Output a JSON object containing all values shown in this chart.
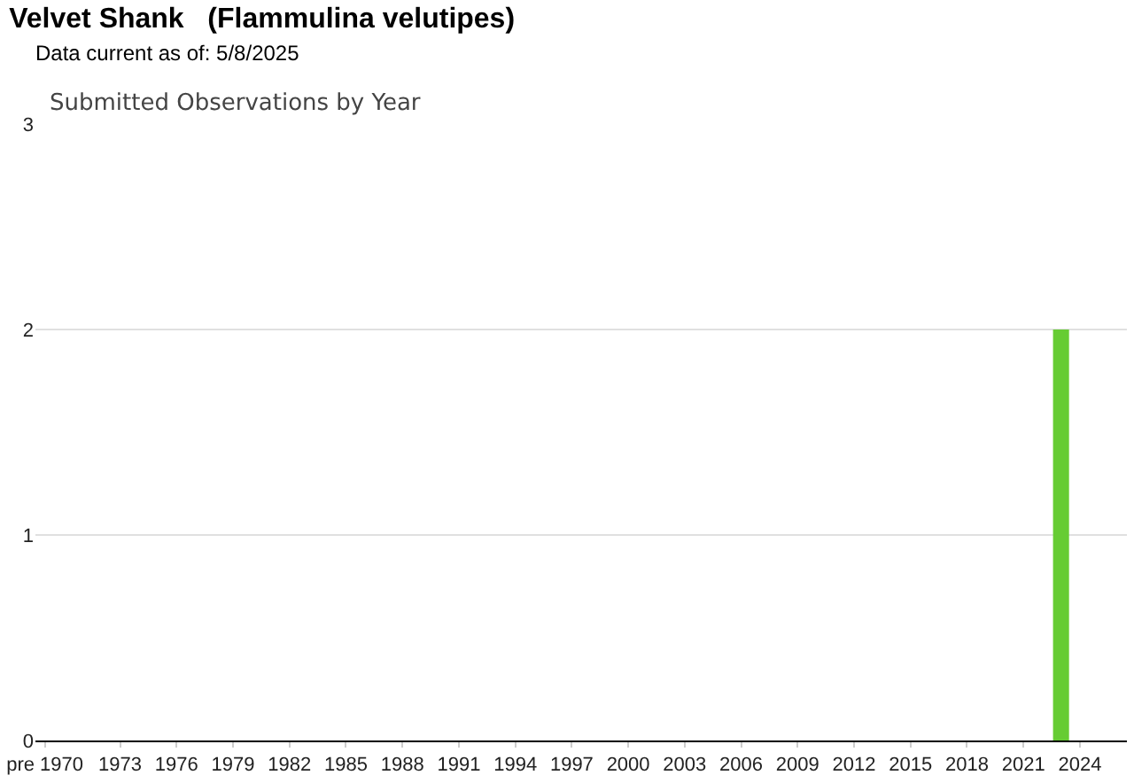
{
  "chart_data": {
    "type": "bar",
    "title": "Velvet Shank   (Flammulina velutipes)",
    "subtitle": "Data current as of: 5/8/2025",
    "annotations": [
      "Submitted Observations by Year"
    ],
    "categories": [
      "pre 1970",
      null,
      null,
      null,
      "1973",
      null,
      null,
      "1976",
      null,
      null,
      "1979",
      null,
      null,
      "1982",
      null,
      null,
      "1985",
      null,
      null,
      "1988",
      null,
      null,
      "1991",
      null,
      null,
      "1994",
      null,
      null,
      "1997",
      null,
      null,
      "2000",
      null,
      null,
      "2003",
      null,
      null,
      "2006",
      null,
      null,
      "2009",
      null,
      null,
      "2012",
      null,
      null,
      "2015",
      null,
      null,
      "2018",
      null,
      null,
      "2021",
      null,
      null,
      "2024",
      null
    ],
    "values": [
      0,
      0,
      0,
      0,
      0,
      0,
      0,
      0,
      0,
      0,
      0,
      0,
      0,
      0,
      0,
      0,
      0,
      0,
      0,
      0,
      0,
      0,
      0,
      0,
      0,
      0,
      0,
      0,
      0,
      0,
      0,
      0,
      0,
      0,
      0,
      0,
      0,
      0,
      0,
      0,
      0,
      0,
      0,
      0,
      0,
      0,
      0,
      0,
      0,
      0,
      0,
      0,
      0,
      0,
      2,
      0,
      0
    ],
    "color": "#66cc33",
    "ylim": [
      0,
      3
    ],
    "yticks": [
      0,
      1,
      2,
      3
    ],
    "grid": "y"
  }
}
